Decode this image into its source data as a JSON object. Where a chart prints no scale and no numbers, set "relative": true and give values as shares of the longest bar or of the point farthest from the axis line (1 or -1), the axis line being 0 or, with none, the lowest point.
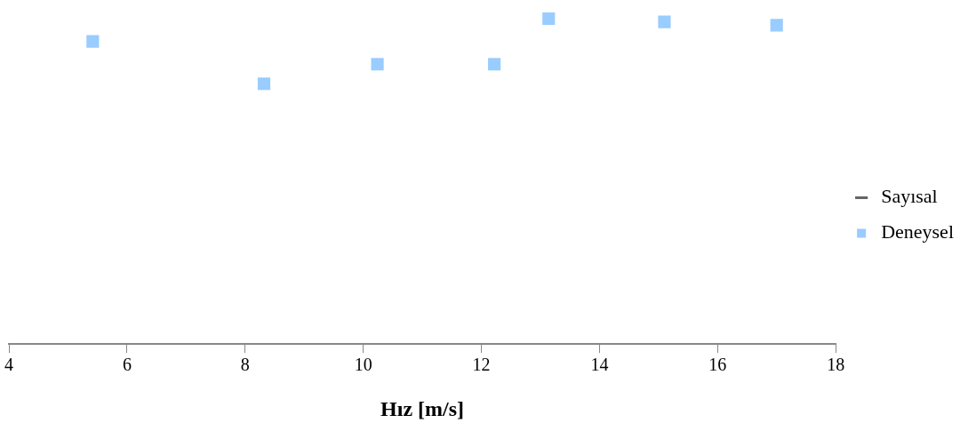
{
  "chart_data": {
    "type": "scatter",
    "xlabel": "Hız [m/s]",
    "relative": true,
    "xlim": [
      4,
      18
    ],
    "xticks": [
      4,
      6,
      8,
      10,
      12,
      14,
      16,
      18
    ],
    "grid": false,
    "legend": "right",
    "marker": "square",
    "x": [
      5.42,
      8.32,
      10.24,
      12.22,
      13.14,
      15.1,
      17.0
    ],
    "series": [
      {
        "name": "Sayısal",
        "type": "line",
        "color": "#666666",
        "values": [
          null,
          null,
          null,
          null,
          null,
          null,
          null
        ]
      },
      {
        "name": "Deneysel",
        "color": "#99ccff",
        "values": [
          0.93,
          0.8,
          0.86,
          0.86,
          1,
          0.99,
          0.98
        ]
      }
    ]
  }
}
